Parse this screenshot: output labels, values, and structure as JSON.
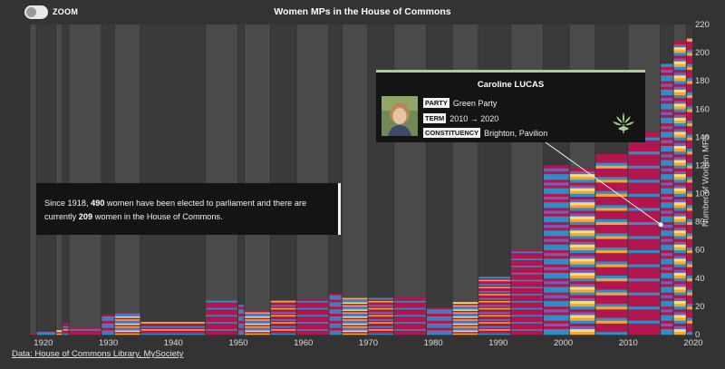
{
  "header": {
    "zoom_label": "ZOOM",
    "title": "Women MPs in the House of Commons"
  },
  "chart_data": {
    "type": "area",
    "title": "Women MPs in the House of Commons",
    "ylabel": "Number of Women MPs",
    "xlim": [
      1915,
      2020
    ],
    "ylim": [
      0,
      220
    ],
    "x_ticks": [
      1920,
      1930,
      1940,
      1950,
      1960,
      1970,
      1980,
      1990,
      2000,
      2010,
      2020
    ],
    "y_ticks": [
      0,
      20,
      40,
      60,
      80,
      100,
      120,
      140,
      160,
      180,
      200,
      220
    ],
    "x": [
      1918,
      1919,
      1922,
      1923,
      1924,
      1929,
      1931,
      1935,
      1945,
      1950,
      1951,
      1955,
      1959,
      1964,
      1966,
      1970,
      1974,
      1979,
      1983,
      1987,
      1992,
      1997,
      2001,
      2005,
      2010,
      2015,
      2017,
      2019
    ],
    "series": [
      {
        "name": "",
        "values": [
          1,
          2,
          3,
          8,
          5,
          14,
          15,
          9,
          24,
          21,
          17,
          24,
          25,
          29,
          26,
          26,
          27,
          19,
          23,
          41,
          60,
          120,
          118,
          128,
          143,
          191,
          208,
          209
        ]
      }
    ],
    "summary": {
      "elected": "490",
      "current": "209"
    },
    "highlight": {
      "x": 2015,
      "y": 78,
      "name": "Caroline LUCAS",
      "party": "Green Party",
      "term": "2010 → 2020",
      "constituency": "Brighton, Pavilion"
    },
    "grid": true
  },
  "infobox": {
    "text_1": "Since 1918, ",
    "elected": "490",
    "text_2": " women have been elected to parliament and there are currently ",
    "current": "209",
    "text_3": " women in the House of Commons."
  },
  "tooltip": {
    "name": "Caroline LUCAS",
    "party_label": "PARTY",
    "party": "Green Party",
    "term_label": "TERM",
    "term": "2010 → 2020",
    "constituency_label": "CONSTITUENCY",
    "constituency": "Brighton, Pavilion"
  },
  "footer": {
    "source": "Data: House of Commons Library, MySociety"
  },
  "colors": {
    "background": "#333333",
    "band_light": "#4a4a4a",
    "band_dark": "#3a3a3a",
    "labour": "#b3164f",
    "conservative": "#2d8fc6",
    "liberal_democrat": "#f0a63a",
    "snp": "#f1e07a",
    "green": "#a9cf8c",
    "other": "#7a5db0"
  }
}
